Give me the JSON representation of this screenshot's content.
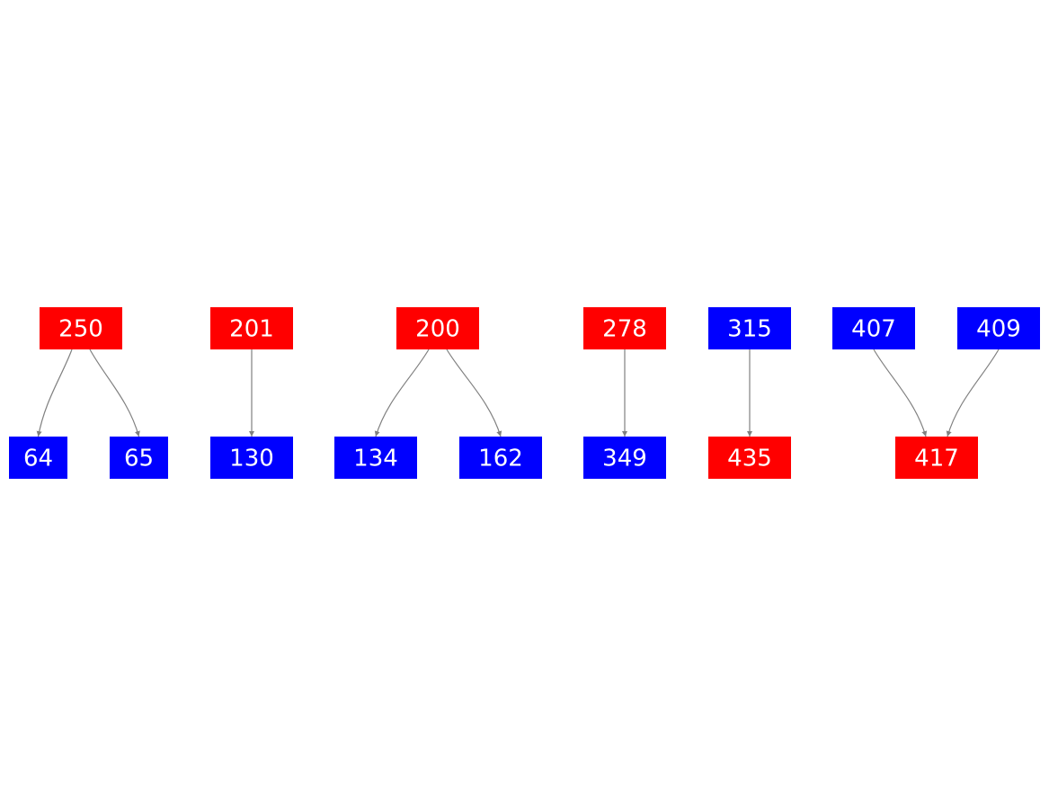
{
  "colors": {
    "red": "#ff0000",
    "blue": "#0000ff",
    "edge": "#808080",
    "label": "#ffffff"
  },
  "nodes": [
    {
      "id": "250",
      "label": "250",
      "color": "red"
    },
    {
      "id": "201",
      "label": "201",
      "color": "red"
    },
    {
      "id": "200",
      "label": "200",
      "color": "red"
    },
    {
      "id": "278",
      "label": "278",
      "color": "red"
    },
    {
      "id": "315",
      "label": "315",
      "color": "blue"
    },
    {
      "id": "407",
      "label": "407",
      "color": "blue"
    },
    {
      "id": "409",
      "label": "409",
      "color": "blue"
    },
    {
      "id": "64",
      "label": "64",
      "color": "blue"
    },
    {
      "id": "65",
      "label": "65",
      "color": "blue"
    },
    {
      "id": "130",
      "label": "130",
      "color": "blue"
    },
    {
      "id": "134",
      "label": "134",
      "color": "blue"
    },
    {
      "id": "162",
      "label": "162",
      "color": "blue"
    },
    {
      "id": "349",
      "label": "349",
      "color": "blue"
    },
    {
      "id": "435",
      "label": "435",
      "color": "red"
    },
    {
      "id": "417",
      "label": "417",
      "color": "red"
    }
  ],
  "edges": [
    {
      "from": "250",
      "to": "64"
    },
    {
      "from": "250",
      "to": "65"
    },
    {
      "from": "201",
      "to": "130"
    },
    {
      "from": "200",
      "to": "134"
    },
    {
      "from": "200",
      "to": "162"
    },
    {
      "from": "278",
      "to": "349"
    },
    {
      "from": "315",
      "to": "435"
    },
    {
      "from": "407",
      "to": "417"
    },
    {
      "from": "409",
      "to": "417"
    }
  ]
}
